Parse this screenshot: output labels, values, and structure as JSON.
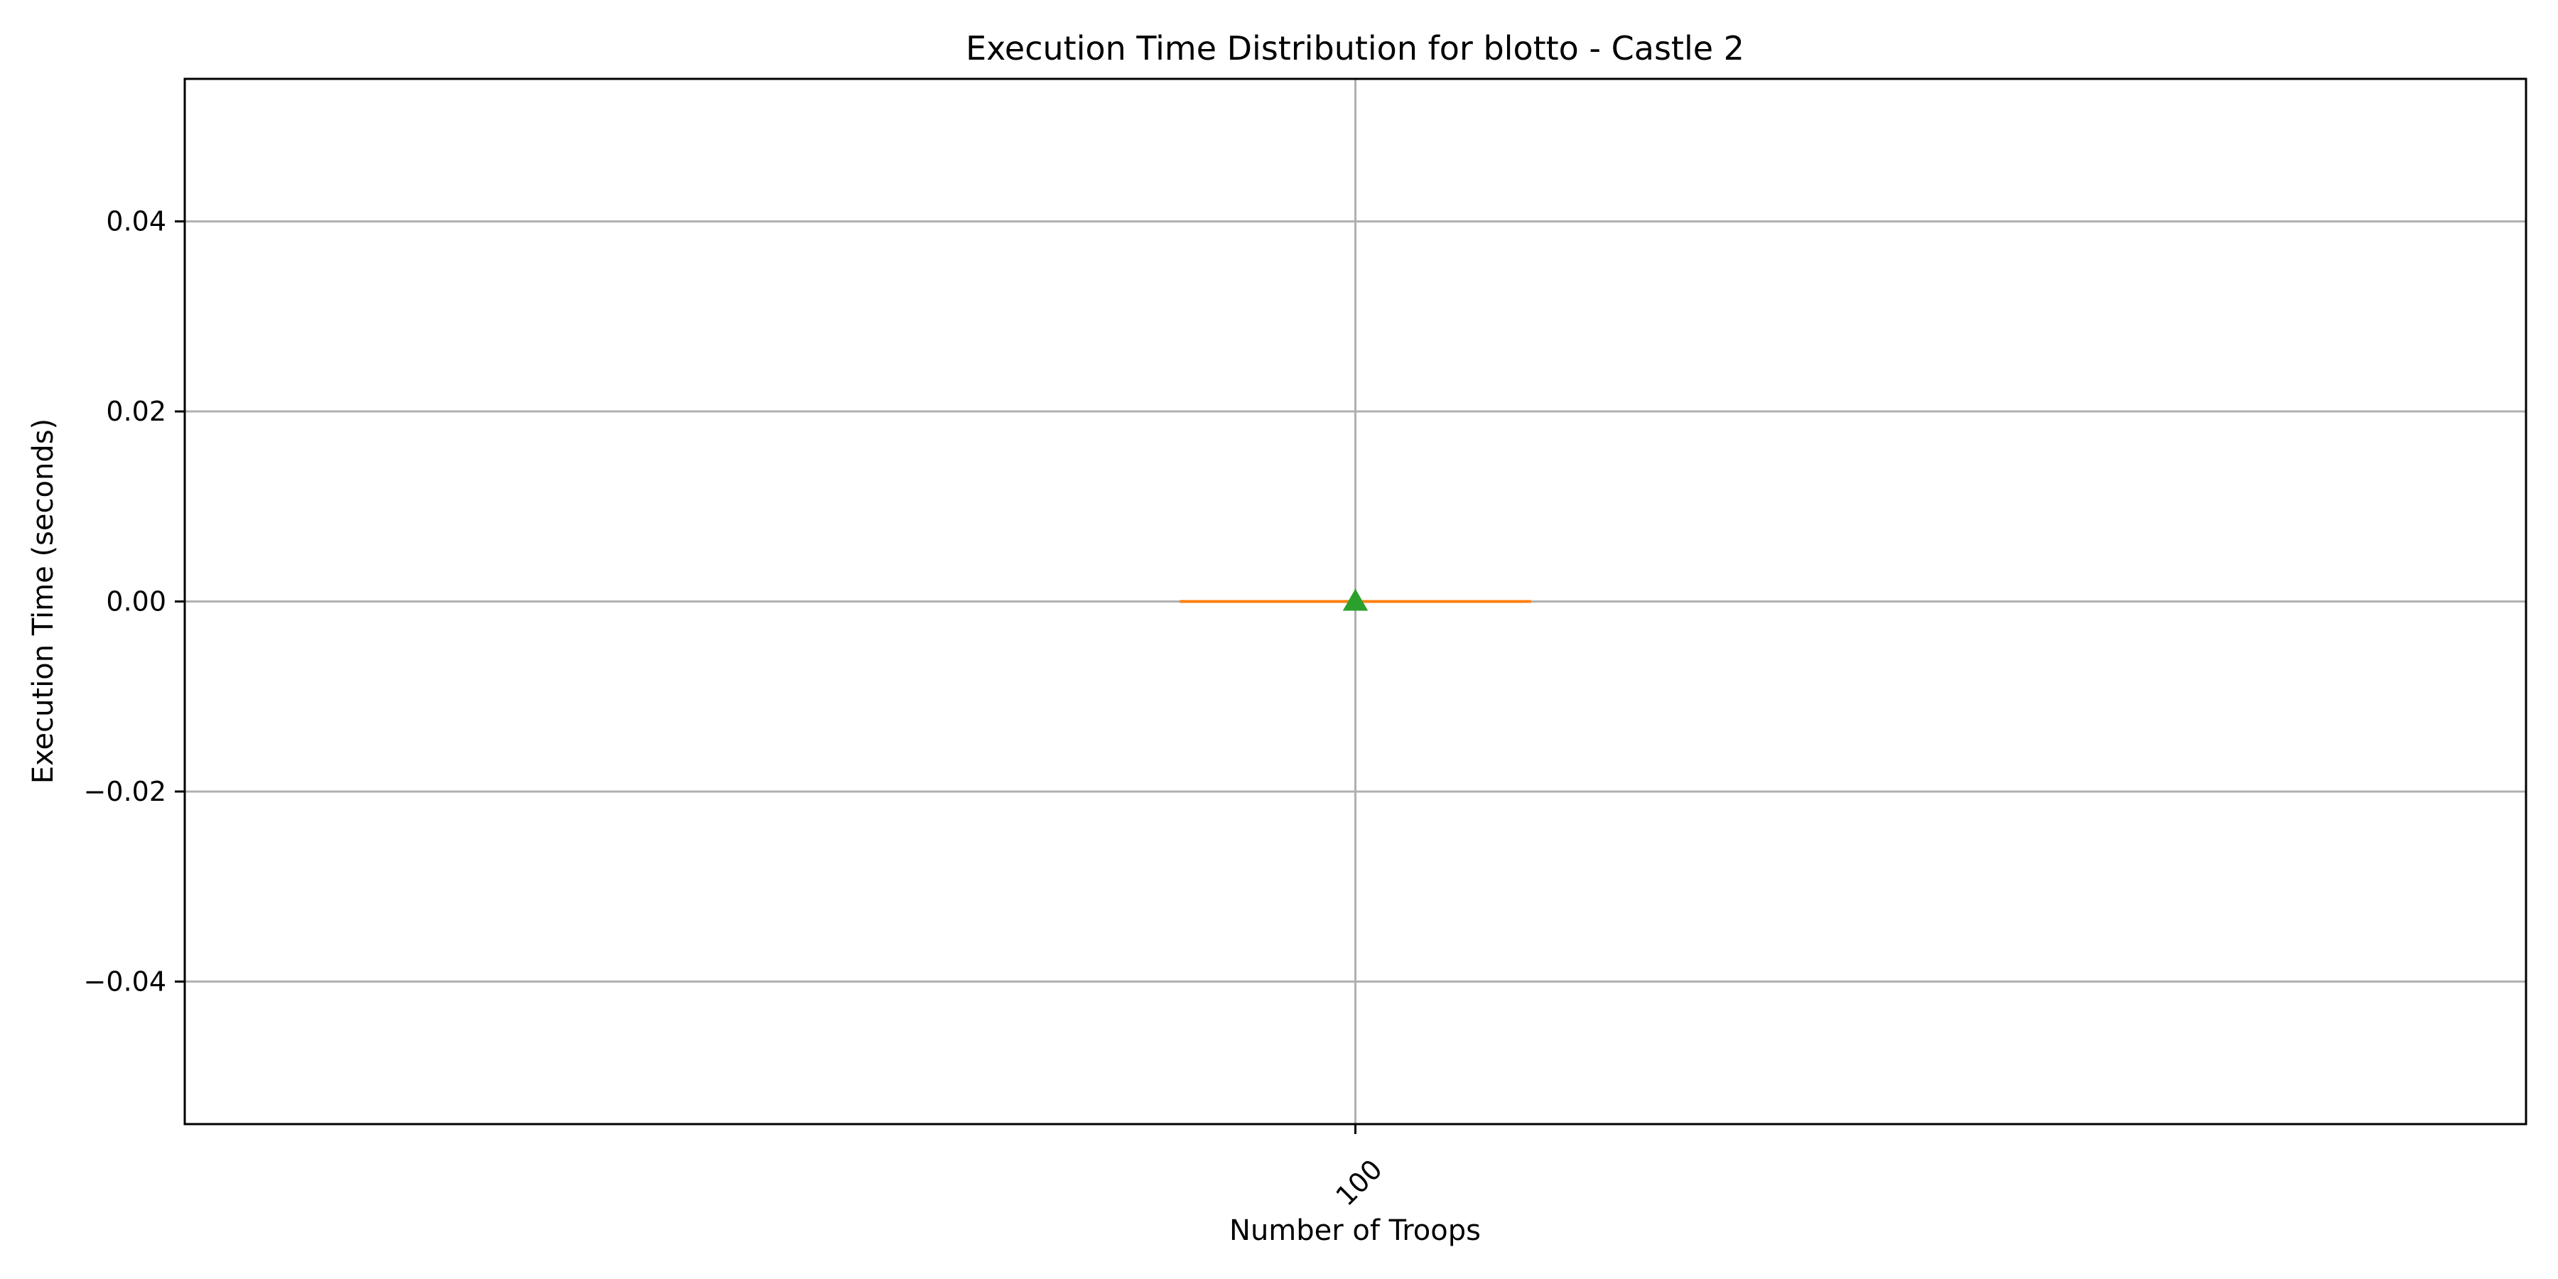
{
  "chart_data": {
    "type": "box",
    "title": "Execution Time Distribution for blotto - Castle 2",
    "xlabel": "Number of Troops",
    "ylabel": "Execution Time (seconds)",
    "categories": [
      "100"
    ],
    "ylim": [
      -0.055,
      0.055
    ],
    "yticks": [
      -0.04,
      -0.02,
      0.0,
      0.02,
      0.04
    ],
    "ytick_labels": [
      "−0.04",
      "−0.02",
      "0.00",
      "0.02",
      "0.04"
    ],
    "grid": true,
    "x_tick_rotation_deg": 45,
    "boxes": [
      {
        "category": "100",
        "q1": 0.0,
        "median": 0.0,
        "q3": 0.0,
        "whisker_low": 0.0,
        "whisker_high": 0.0,
        "mean": 0.0
      }
    ],
    "colors": {
      "median": "#ff7f0e",
      "mean": "#2ca02c",
      "box": "#000000",
      "grid": "#b0b0b0"
    }
  }
}
